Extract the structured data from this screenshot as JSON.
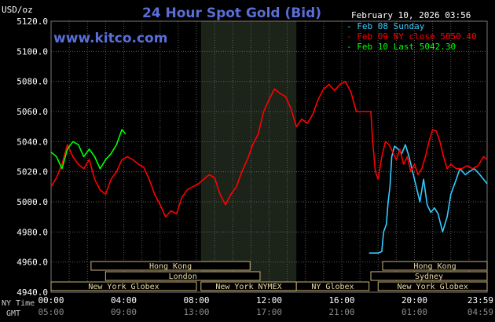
{
  "chart_data": {
    "type": "line",
    "title": "24 Hour Spot Gold (Bid)",
    "watermark": "www.kitco.com",
    "date_label": "February 10, 2026 03:56",
    "ylabel": "USD/oz",
    "ylim": [
      4940,
      5120
    ],
    "yticks": [
      "5120.0",
      "5100.0",
      "5080.0",
      "5060.0",
      "5040.0",
      "5020.0",
      "5000.0",
      "4980.0",
      "4960.0",
      "4940.0"
    ],
    "xlim": [
      0,
      24
    ],
    "grid": true,
    "legend_position": "top-right",
    "x_axis": {
      "ny_label": "NY Time",
      "gmt_label": "GMT",
      "ny_ticks": [
        {
          "x": 0,
          "label": "00:00"
        },
        {
          "x": 4,
          "label": "04:00"
        },
        {
          "x": 8,
          "label": "08:00"
        },
        {
          "x": 12,
          "label": "12:00"
        },
        {
          "x": 16,
          "label": "16:00"
        },
        {
          "x": 20,
          "label": "20:00"
        },
        {
          "x": 24,
          "label": "23:59"
        }
      ],
      "gmt_ticks": [
        {
          "x": 0,
          "label": "05:00"
        },
        {
          "x": 4,
          "label": "09:00"
        },
        {
          "x": 8,
          "label": "13:00"
        },
        {
          "x": 12,
          "label": "17:00"
        },
        {
          "x": 16,
          "label": "21:00"
        },
        {
          "x": 20,
          "label": "01:00"
        },
        {
          "x": 24,
          "label": "04:59"
        }
      ]
    },
    "shaded_range": [
      8.25,
      13.5
    ],
    "sessions": [
      {
        "label": "Hong Kong",
        "start": 2.2,
        "end": 10.95,
        "row": 0
      },
      {
        "label": "Hong Kong",
        "start": 18.25,
        "end": 24,
        "row": 0
      },
      {
        "label": "London",
        "start": 3.0,
        "end": 11.5,
        "row": 1
      },
      {
        "label": "Sydney",
        "start": 17.6,
        "end": 24,
        "row": 1
      },
      {
        "label": "New York Globex",
        "start": 0,
        "end": 8.0,
        "row": 2
      },
      {
        "label": "New York NYMEX",
        "start": 8.25,
        "end": 13.5,
        "row": 2
      },
      {
        "label": "NY Globex",
        "start": 13.5,
        "end": 17.5,
        "row": 2
      },
      {
        "label": "New York Globex",
        "start": 18.0,
        "end": 24,
        "row": 2
      }
    ],
    "series": [
      {
        "name": "Feb 08 Sunday",
        "color": "#33ccff",
        "points": [
          [
            17.5,
            4966
          ],
          [
            18.0,
            4966
          ],
          [
            18.2,
            4967
          ],
          [
            18.3,
            4980
          ],
          [
            18.45,
            4985
          ],
          [
            18.55,
            5000
          ],
          [
            18.65,
            5010
          ],
          [
            18.75,
            5030
          ],
          [
            18.9,
            5037
          ],
          [
            19.1,
            5035
          ],
          [
            19.3,
            5032
          ],
          [
            19.5,
            5038
          ],
          [
            19.7,
            5030
          ],
          [
            19.9,
            5020
          ],
          [
            20.1,
            5010
          ],
          [
            20.3,
            5000
          ],
          [
            20.5,
            5015
          ],
          [
            20.7,
            4998
          ],
          [
            20.9,
            4993
          ],
          [
            21.1,
            4996
          ],
          [
            21.3,
            4992
          ],
          [
            21.55,
            4980
          ],
          [
            21.8,
            4990
          ],
          [
            22.0,
            5005
          ],
          [
            22.3,
            5015
          ],
          [
            22.5,
            5022
          ],
          [
            22.8,
            5018
          ],
          [
            23.0,
            5020
          ],
          [
            23.3,
            5022
          ],
          [
            23.6,
            5018
          ],
          [
            24.0,
            5012
          ]
        ]
      },
      {
        "name": "Feb 09 NY close 5050.40",
        "color": "#ff0000",
        "points": [
          [
            0,
            5010
          ],
          [
            0.3,
            5016
          ],
          [
            0.6,
            5025
          ],
          [
            0.9,
            5038
          ],
          [
            1.2,
            5030
          ],
          [
            1.5,
            5025
          ],
          [
            1.8,
            5022
          ],
          [
            2.1,
            5028
          ],
          [
            2.4,
            5015
          ],
          [
            2.7,
            5008
          ],
          [
            3.0,
            5005
          ],
          [
            3.3,
            5015
          ],
          [
            3.6,
            5020
          ],
          [
            3.9,
            5028
          ],
          [
            4.2,
            5030
          ],
          [
            4.5,
            5028
          ],
          [
            4.8,
            5025
          ],
          [
            5.1,
            5023
          ],
          [
            5.4,
            5015
          ],
          [
            5.7,
            5005
          ],
          [
            6.0,
            4998
          ],
          [
            6.3,
            4990
          ],
          [
            6.6,
            4994
          ],
          [
            6.9,
            4992
          ],
          [
            7.2,
            5003
          ],
          [
            7.5,
            5008
          ],
          [
            7.8,
            5010
          ],
          [
            8.1,
            5012
          ],
          [
            8.4,
            5015
          ],
          [
            8.7,
            5018
          ],
          [
            9.0,
            5016
          ],
          [
            9.3,
            5005
          ],
          [
            9.6,
            4998
          ],
          [
            9.9,
            5005
          ],
          [
            10.2,
            5010
          ],
          [
            10.5,
            5020
          ],
          [
            10.8,
            5028
          ],
          [
            11.1,
            5038
          ],
          [
            11.4,
            5045
          ],
          [
            11.7,
            5060
          ],
          [
            12.0,
            5068
          ],
          [
            12.3,
            5075
          ],
          [
            12.6,
            5072
          ],
          [
            12.9,
            5070
          ],
          [
            13.2,
            5062
          ],
          [
            13.5,
            5050
          ],
          [
            13.8,
            5055
          ],
          [
            14.1,
            5052
          ],
          [
            14.4,
            5058
          ],
          [
            14.7,
            5068
          ],
          [
            15.0,
            5075
          ],
          [
            15.3,
            5078
          ],
          [
            15.6,
            5074
          ],
          [
            15.9,
            5078
          ],
          [
            16.2,
            5080
          ],
          [
            16.5,
            5073
          ],
          [
            16.8,
            5060
          ],
          [
            17.1,
            5060
          ],
          [
            17.4,
            5060
          ],
          [
            17.6,
            5060
          ],
          [
            17.7,
            5040
          ],
          [
            17.85,
            5020
          ],
          [
            18.0,
            5015
          ],
          [
            18.2,
            5030
          ],
          [
            18.4,
            5040
          ],
          [
            18.6,
            5038
          ],
          [
            18.8,
            5033
          ],
          [
            19.0,
            5028
          ],
          [
            19.2,
            5035
          ],
          [
            19.4,
            5025
          ],
          [
            19.6,
            5030
          ],
          [
            19.8,
            5020
          ],
          [
            20.0,
            5025
          ],
          [
            20.2,
            5018
          ],
          [
            20.4,
            5022
          ],
          [
            20.6,
            5030
          ],
          [
            20.8,
            5040
          ],
          [
            21.0,
            5048
          ],
          [
            21.2,
            5047
          ],
          [
            21.4,
            5040
          ],
          [
            21.6,
            5030
          ],
          [
            21.8,
            5022
          ],
          [
            22.0,
            5025
          ],
          [
            22.3,
            5022
          ],
          [
            22.6,
            5022
          ],
          [
            22.9,
            5024
          ],
          [
            23.2,
            5022
          ],
          [
            23.5,
            5024
          ],
          [
            23.8,
            5030
          ],
          [
            24.0,
            5028
          ]
        ]
      },
      {
        "name": "Feb 10 Last 5042.30",
        "color": "#00ff00",
        "points": [
          [
            0,
            5033
          ],
          [
            0.3,
            5030
          ],
          [
            0.6,
            5022
          ],
          [
            0.9,
            5035
          ],
          [
            1.2,
            5040
          ],
          [
            1.5,
            5038
          ],
          [
            1.8,
            5030
          ],
          [
            2.1,
            5035
          ],
          [
            2.4,
            5030
          ],
          [
            2.7,
            5022
          ],
          [
            3.0,
            5028
          ],
          [
            3.3,
            5032
          ],
          [
            3.6,
            5038
          ],
          [
            3.9,
            5048
          ],
          [
            4.1,
            5045
          ]
        ]
      }
    ]
  }
}
